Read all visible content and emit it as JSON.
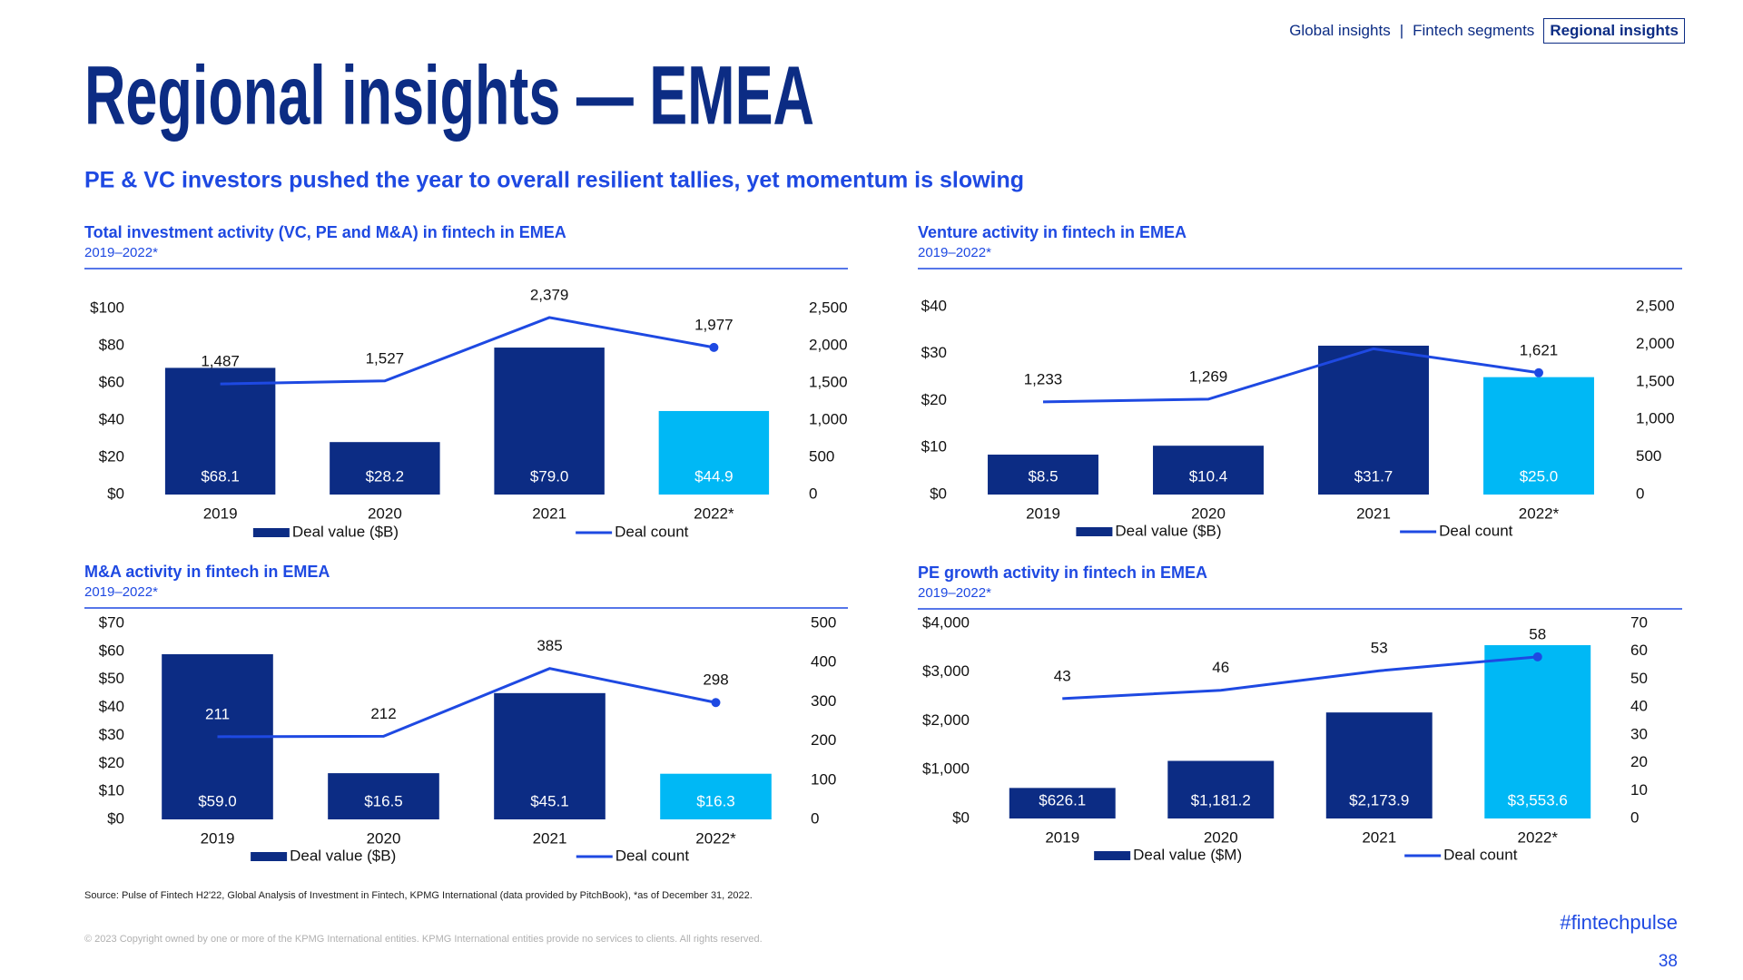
{
  "nav": {
    "items": [
      "Global insights",
      "Fintech segments",
      "Regional insights"
    ],
    "separator": "|"
  },
  "title": "Regional insights — EMEA",
  "subtitle": "PE & VC investors pushed the year to overall resilient tallies, yet momentum is slowing",
  "chart_data": [
    {
      "type": "combo",
      "title": "Total investment activity (VC, PE and M&A) in fintech in EMEA",
      "subtitle": "2019–2022*",
      "categories": [
        "2019",
        "2020",
        "2021",
        "2022*"
      ],
      "series": [
        {
          "name": "Deal value ($B)",
          "type": "bar",
          "color": "#0C2C84",
          "colors": [
            "#0C2C84",
            "#0C2C84",
            "#0C2C84",
            "#00B8F5"
          ],
          "values": [
            68.1,
            28.2,
            79.0,
            44.9
          ],
          "value_labels": [
            "$68.1",
            "$28.2",
            "$79.0",
            "$44.9"
          ]
        },
        {
          "name": "Deal count",
          "type": "line",
          "color": "#1E49E2",
          "axis": "y2",
          "values": [
            1487,
            1527,
            2379,
            1977
          ],
          "value_labels": [
            "1,487",
            "1,527",
            "2,379",
            "1,977"
          ]
        }
      ],
      "ylim": [
        0,
        100
      ],
      "yticks": [
        {
          "value": 0,
          "label": "$0"
        },
        {
          "value": 20,
          "label": "$20"
        },
        {
          "value": 40,
          "label": "$40"
        },
        {
          "value": 60,
          "label": "$60"
        },
        {
          "value": 80,
          "label": "$80"
        },
        {
          "value": 100,
          "label": "$100"
        }
      ],
      "y2lim": [
        0,
        2500
      ],
      "y2ticks": [
        0,
        500,
        {
          "value": 1000,
          "label": "1,000"
        },
        {
          "value": 1500,
          "label": "1,500"
        },
        {
          "value": 2000,
          "label": "2,000"
        },
        {
          "value": 2500,
          "label": "2,500"
        }
      ],
      "legend": "bottom"
    },
    {
      "type": "combo",
      "title": "Venture activity in fintech in EMEA",
      "subtitle": "2019–2022*",
      "categories": [
        "2019",
        "2020",
        "2021",
        "2022*"
      ],
      "series": [
        {
          "name": "Deal value ($B)",
          "type": "bar",
          "color": "#0C2C84",
          "colors": [
            "#0C2C84",
            "#0C2C84",
            "#0C2C84",
            "#00B8F5"
          ],
          "values": [
            8.5,
            10.4,
            31.7,
            25.0
          ],
          "value_labels": [
            "$8.5",
            "$10.4",
            "$31.7",
            "$25.0"
          ]
        },
        {
          "name": "Deal count",
          "type": "line",
          "color": "#1E49E2",
          "axis": "y2",
          "values": [
            1233,
            1269,
            1940,
            1621
          ],
          "value_labels": [
            "1,233",
            "1,269",
            null,
            "1,621"
          ]
        }
      ],
      "ylim": [
        0,
        40
      ],
      "yticks": [
        {
          "value": 0,
          "label": "$0"
        },
        {
          "value": 10,
          "label": "$10"
        },
        {
          "value": 20,
          "label": "$20"
        },
        {
          "value": 30,
          "label": "$30"
        },
        {
          "value": 40,
          "label": "$40"
        }
      ],
      "y2lim": [
        0,
        2500
      ],
      "y2ticks": [
        0,
        500,
        {
          "value": 1000,
          "label": "1,000"
        },
        {
          "value": 1500,
          "label": "1,500"
        },
        {
          "value": 2000,
          "label": "2,000"
        },
        {
          "value": 2500,
          "label": "2,500"
        }
      ],
      "legend": "bottom"
    },
    {
      "type": "combo",
      "title": "M&A activity in fintech in EMEA",
      "subtitle": "2019–2022*",
      "categories": [
        "2019",
        "2020",
        "2021",
        "2022*"
      ],
      "series": [
        {
          "name": "Deal value ($B)",
          "type": "bar",
          "color": "#0C2C84",
          "colors": [
            "#0C2C84",
            "#0C2C84",
            "#0C2C84",
            "#00B8F5"
          ],
          "values": [
            59.0,
            16.5,
            45.1,
            16.3
          ],
          "value_labels": [
            "$59.0",
            "$16.5",
            "$45.1",
            "$16.3"
          ]
        },
        {
          "name": "Deal count",
          "type": "line",
          "color": "#1E49E2",
          "axis": "y2",
          "values": [
            211,
            212,
            385,
            298
          ]
        }
      ],
      "ylim": [
        0,
        70
      ],
      "yticks": [
        {
          "value": 0,
          "label": "$0"
        },
        {
          "value": 10,
          "label": "$10"
        },
        {
          "value": 20,
          "label": "$20"
        },
        {
          "value": 30,
          "label": "$30"
        },
        {
          "value": 40,
          "label": "$40"
        },
        {
          "value": 50,
          "label": "$50"
        },
        {
          "value": 60,
          "label": "$60"
        },
        {
          "value": 70,
          "label": "$70"
        }
      ],
      "y2lim": [
        0,
        500
      ],
      "y2ticks": [
        0,
        100,
        200,
        300,
        400,
        500
      ],
      "legend": "bottom"
    },
    {
      "type": "combo",
      "title": "PE growth activity in fintech in EMEA",
      "subtitle": "2019–2022*",
      "categories": [
        "2019",
        "2020",
        "2021",
        "2022*"
      ],
      "series": [
        {
          "name": "Deal value ($M)",
          "type": "bar",
          "color": "#0C2C84",
          "colors": [
            "#0C2C84",
            "#0C2C84",
            "#0C2C84",
            "#00B8F5"
          ],
          "values": [
            626.1,
            1181.2,
            2173.9,
            3553.6
          ],
          "value_labels": [
            "$626.1",
            "$1,181.2",
            "$2,173.9",
            "$3,553.6"
          ]
        },
        {
          "name": "Deal count",
          "type": "line",
          "color": "#1E49E2",
          "axis": "y2",
          "values": [
            43,
            46,
            53,
            58
          ]
        }
      ],
      "ylim": [
        0,
        4000
      ],
      "yticks": [
        {
          "value": 0,
          "label": "$0"
        },
        {
          "value": 1000,
          "label": "$1,000"
        },
        {
          "value": 2000,
          "label": "$2,000"
        },
        {
          "value": 3000,
          "label": "$3,000"
        },
        {
          "value": 4000,
          "label": "$4,000"
        }
      ],
      "y2lim": [
        0,
        70
      ],
      "y2ticks": [
        0,
        10,
        20,
        30,
        40,
        50,
        60,
        70
      ],
      "legend": "bottom"
    }
  ],
  "source": "Source: Pulse of Fintech H2'22, Global Analysis of Investment in Fintech, KPMG International (data provided by PitchBook), *as of December 31, 2022.",
  "copyright": "© 2023 Copyright owned by one or more of the KPMG International entities. KPMG International entities provide no services to clients. All rights reserved.",
  "hashtag": "#fintechpulse",
  "page_number": 38
}
